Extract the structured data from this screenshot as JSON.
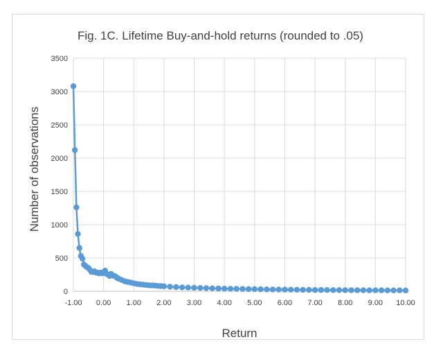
{
  "chart_data": {
    "type": "line",
    "title": "Fig. 1C. Lifetime Buy-and-hold returns (rounded to .05)",
    "xlabel": "Return",
    "ylabel": "Number of observations",
    "xlim": [
      -1.0,
      10.0
    ],
    "ylim": [
      0,
      3500
    ],
    "x_ticks": [
      "-1.00",
      "0.00",
      "1.00",
      "2.00",
      "3.00",
      "4.00",
      "5.00",
      "6.00",
      "7.00",
      "8.00",
      "9.00",
      "10.00"
    ],
    "y_ticks": [
      "0",
      "500",
      "1000",
      "1500",
      "2000",
      "2500",
      "3000",
      "3500"
    ],
    "grid": true,
    "legend": "none",
    "series_color": "#5b9bd5",
    "series": [
      {
        "x": [
          -1.0,
          -0.95,
          -0.9,
          -0.85,
          -0.8,
          -0.75,
          -0.7,
          -0.65,
          -0.6,
          -0.55,
          -0.5,
          -0.45,
          -0.4,
          -0.35,
          -0.3,
          -0.25,
          -0.2,
          -0.15,
          -0.1,
          -0.05,
          0.0,
          0.05,
          0.1,
          0.15,
          0.2,
          0.25,
          0.3,
          0.35,
          0.4,
          0.45,
          0.5,
          0.6,
          0.7,
          0.8,
          0.9,
          1.0,
          1.1,
          1.2,
          1.3,
          1.4,
          1.5,
          1.6,
          1.7,
          1.8,
          1.9,
          2.0,
          2.2,
          2.4,
          2.6,
          2.8,
          3.0,
          3.2,
          3.4,
          3.6,
          3.8,
          4.0,
          4.2,
          4.4,
          4.6,
          4.8,
          5.0,
          5.2,
          5.4,
          5.6,
          5.8,
          6.0,
          6.2,
          6.4,
          6.6,
          6.8,
          7.0,
          7.2,
          7.4,
          7.6,
          7.8,
          8.0,
          8.2,
          8.4,
          8.6,
          8.8,
          9.0,
          9.2,
          9.4,
          9.6,
          9.8,
          10.0
        ],
        "values": [
          3080,
          2120,
          1260,
          860,
          650,
          530,
          490,
          400,
          380,
          360,
          350,
          320,
          290,
          290,
          300,
          280,
          280,
          270,
          280,
          270,
          290,
          310,
          260,
          250,
          230,
          260,
          240,
          230,
          220,
          200,
          190,
          170,
          150,
          140,
          130,
          120,
          110,
          105,
          100,
          95,
          90,
          88,
          85,
          80,
          78,
          75,
          68,
          62,
          58,
          55,
          52,
          50,
          48,
          45,
          42,
          40,
          38,
          36,
          35,
          33,
          32,
          30,
          28,
          27,
          26,
          25,
          24,
          23,
          22,
          21,
          20,
          20,
          19,
          18,
          18,
          17,
          17,
          16,
          16,
          15,
          15,
          15,
          14,
          14,
          14,
          13
        ]
      }
    ]
  }
}
